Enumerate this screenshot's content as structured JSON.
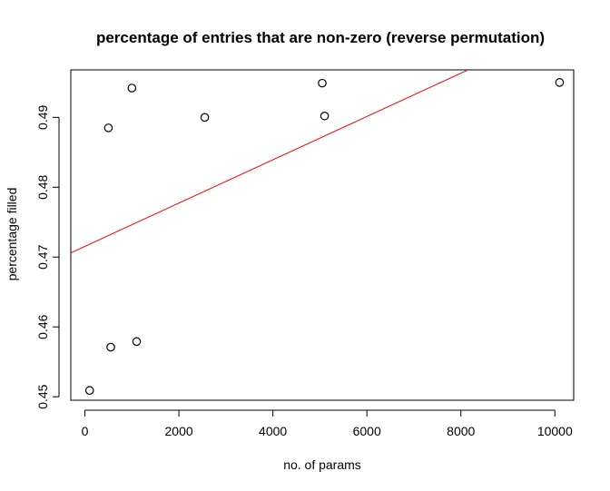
{
  "chart_data": {
    "type": "scatter",
    "title": "percentage of entries that are non-zero (reverse permutation)",
    "xlabel": "no. of params",
    "ylabel": "percentage filled",
    "xlim": [
      -300,
      10400
    ],
    "ylim": [
      0.4495,
      0.4968
    ],
    "x_ticks": [
      0,
      2000,
      4000,
      6000,
      8000,
      10000
    ],
    "y_ticks": [
      0.45,
      0.46,
      0.47,
      0.48,
      0.49
    ],
    "x_tick_labels": [
      "0",
      "2000",
      "4000",
      "6000",
      "8000",
      "10000"
    ],
    "y_tick_labels": [
      "0.45",
      "0.46",
      "0.47",
      "0.48",
      "0.49"
    ],
    "grid": false,
    "legend": "none",
    "points": [
      {
        "x": 100,
        "y": 0.4509
      },
      {
        "x": 500,
        "y": 0.4885
      },
      {
        "x": 550,
        "y": 0.4571
      },
      {
        "x": 1000,
        "y": 0.4942
      },
      {
        "x": 1100,
        "y": 0.4579
      },
      {
        "x": 2550,
        "y": 0.49
      },
      {
        "x": 5050,
        "y": 0.4949
      },
      {
        "x": 5100,
        "y": 0.4902
      },
      {
        "x": 10100,
        "y": 0.495
      }
    ],
    "fit_line": {
      "intercept": 0.47153,
      "slope": 3.1e-06,
      "color": "#ff0000"
    },
    "point_color": "#000000"
  }
}
